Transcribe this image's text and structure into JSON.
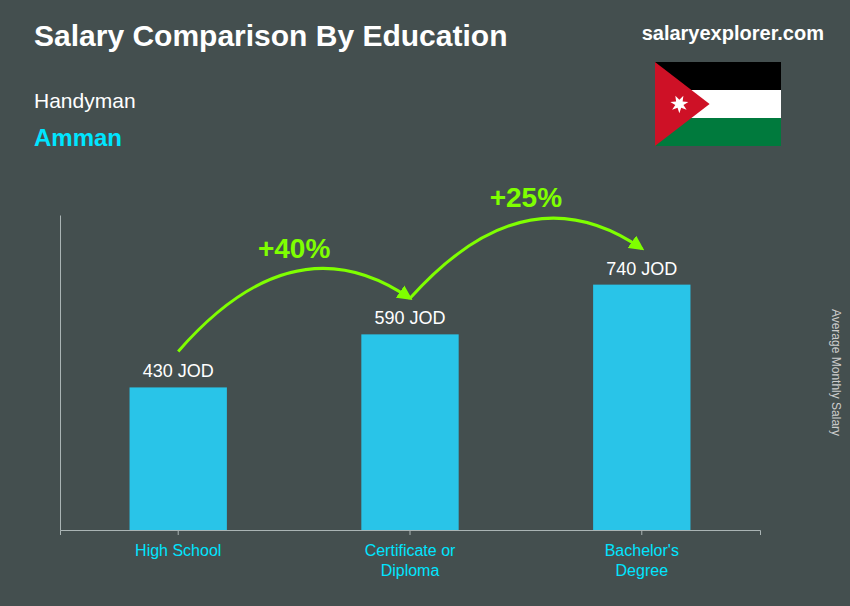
{
  "chart_data": {
    "type": "bar",
    "title": "Salary Comparison By Education",
    "subtitle": [
      "Handyman",
      "Amman"
    ],
    "ylabel": "Average Monthly Salary",
    "categories": [
      "High School",
      "Certificate or\nDiploma",
      "Bachelor's\nDegree"
    ],
    "values": [
      430,
      590,
      740
    ],
    "value_labels": [
      "430 JOD",
      "590 JOD",
      "740 JOD"
    ],
    "data_labels": true,
    "color": "#29C4E8",
    "ylim": [
      0,
      950
    ],
    "tick_labels": "x",
    "grid": false,
    "annotations": [
      "+40%",
      "+25%",
      "salaryexplorer.com"
    ]
  }
}
